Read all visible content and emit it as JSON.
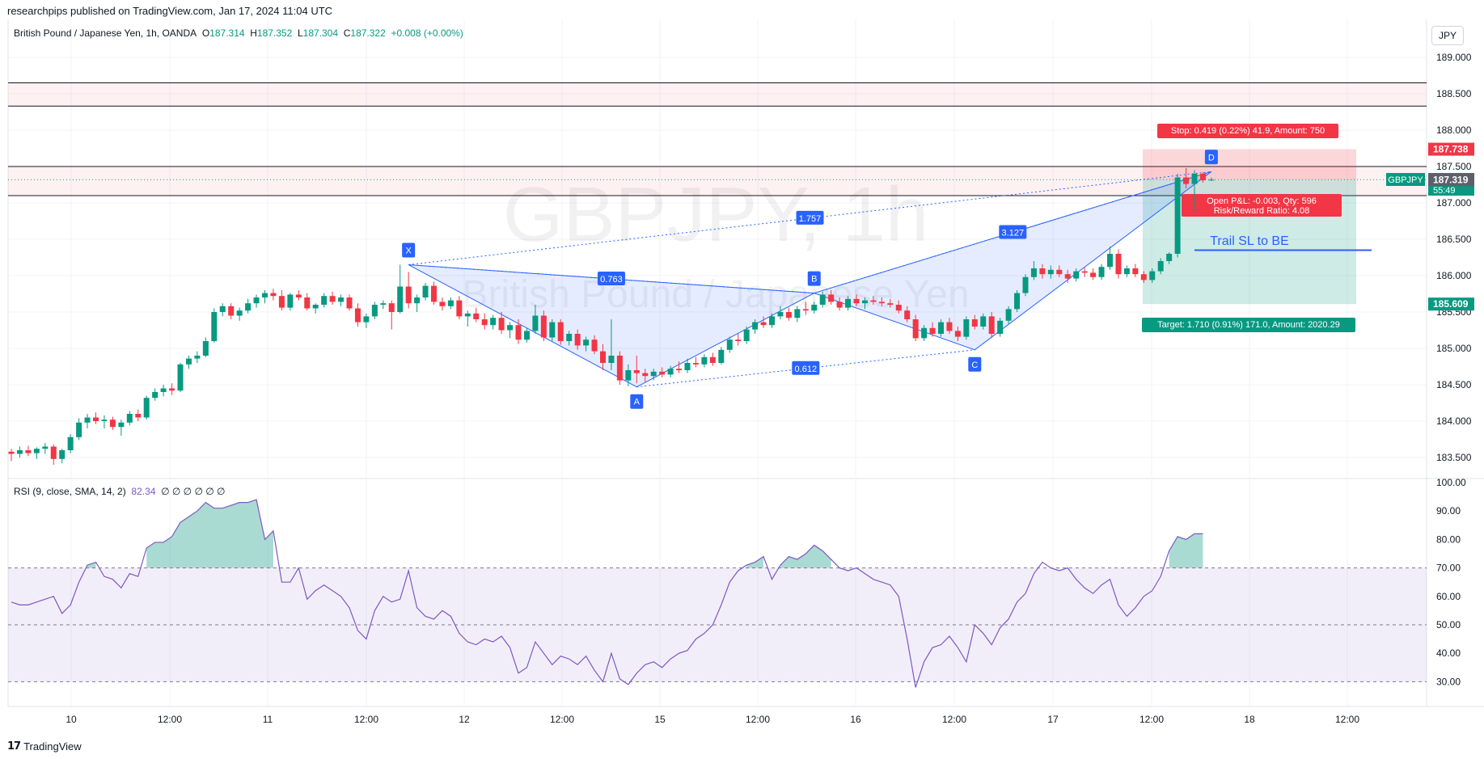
{
  "header": {
    "publish_line": "researchpips published on TradingView.com, Jan 17, 2024 11:04 UTC",
    "currency": "JPY"
  },
  "legend": {
    "title": "British Pound / Japanese Yen, 1h, OANDA",
    "o_label": "O",
    "o": "187.314",
    "h_label": "H",
    "h": "187.352",
    "l_label": "L",
    "l": "187.304",
    "c_label": "C",
    "c": "187.322",
    "change": "+0.008 (+0.00%)"
  },
  "rsi_legend": {
    "label": "RSI (9, close, SMA, 14, 2)",
    "value": "82.34",
    "extra": "∅ ∅ ∅ ∅ ∅ ∅"
  },
  "watermark": {
    "symbol": "GBPJPY, 1h",
    "name": "British Pound / Japanese Yen"
  },
  "footer": {
    "brand": "TradingView"
  },
  "colors": {
    "up": "#089981",
    "down": "#f23645",
    "pattern": "#2962ff",
    "rsi": "#7e57c2",
    "grid": "#f0f3fa",
    "axis_text": "#131722"
  },
  "chart_data": [
    {
      "type": "candlestick",
      "symbol": "GBPJPY",
      "timeframe": "1h",
      "x_ticks": [
        "10",
        "12:00",
        "11",
        "12:00",
        "12",
        "12:00",
        "15",
        "12:00",
        "16",
        "12:00",
        "17",
        "12:00",
        "18",
        "12:00"
      ],
      "y_ticks": [
        "189.000",
        "188.500",
        "188.000",
        "187.500",
        "187.000",
        "186.500",
        "186.000",
        "185.500",
        "185.000",
        "184.500",
        "184.000",
        "183.500"
      ],
      "ylim": [
        183.3,
        189.3
      ],
      "price_labels": [
        {
          "text": "187.738",
          "value": 187.738,
          "color": "#f23645"
        },
        {
          "text": "187.322",
          "value": 187.322,
          "color": "#089981",
          "tag": "GBPJPY",
          "countdown": "55:49"
        },
        {
          "text": "187.319",
          "value": 187.319,
          "color": "#5d606b"
        },
        {
          "text": "185.609",
          "value": 185.609,
          "color": "#089981"
        }
      ],
      "zones": [
        {
          "from": 188.33,
          "to": 188.65,
          "color": "#f23645"
        },
        {
          "from": 187.1,
          "to": 187.5,
          "color": "#f23645"
        }
      ],
      "harmonic_pattern": {
        "points": [
          {
            "label": "X",
            "index": 47,
            "price": 186.15
          },
          {
            "label": "A",
            "index": 74,
            "price": 184.47
          },
          {
            "label": "B",
            "index": 95,
            "price": 185.76
          },
          {
            "label": "C",
            "index": 114,
            "price": 184.98
          },
          {
            "label": "D",
            "index": 142,
            "price": 187.43
          }
        ],
        "ratios": [
          {
            "text": "0.763"
          },
          {
            "text": "0.612"
          },
          {
            "text": "1.757"
          },
          {
            "text": "3.127"
          }
        ]
      },
      "position": {
        "entry": 187.319,
        "stop": 187.738,
        "target": 185.609,
        "stop_label": "Stop: 0.419 (0.22%) 41.9, Amount: 750",
        "pnl_label": "Open P&L: -0.003, Qty: 596",
        "rr_label": "Risk/Reward Ratio: 4.08",
        "target_label": "Target: 1.710 (0.91%) 171.0, Amount: 2020.29"
      },
      "annotation": {
        "text": "Trail SL to BE",
        "price": 186.35
      },
      "candles": [
        [
          183.58,
          183.62,
          183.45,
          183.55
        ],
        [
          183.55,
          183.65,
          183.5,
          183.6
        ],
        [
          183.6,
          183.66,
          183.52,
          183.56
        ],
        [
          183.56,
          183.64,
          183.48,
          183.62
        ],
        [
          183.62,
          183.7,
          183.55,
          183.65
        ],
        [
          183.65,
          183.68,
          183.4,
          183.48
        ],
        [
          183.48,
          183.62,
          183.42,
          183.6
        ],
        [
          183.6,
          183.82,
          183.56,
          183.78
        ],
        [
          183.78,
          184.04,
          183.74,
          183.98
        ],
        [
          183.98,
          184.1,
          183.9,
          184.05
        ],
        [
          184.05,
          184.12,
          183.96,
          184.0
        ],
        [
          184.0,
          184.08,
          183.9,
          184.02
        ],
        [
          184.02,
          184.06,
          183.88,
          183.92
        ],
        [
          183.92,
          184.02,
          183.8,
          183.98
        ],
        [
          183.98,
          184.14,
          183.94,
          184.1
        ],
        [
          184.1,
          184.16,
          184.0,
          184.05
        ],
        [
          184.05,
          184.35,
          184.02,
          184.32
        ],
        [
          184.32,
          184.45,
          184.28,
          184.4
        ],
        [
          184.4,
          184.5,
          184.34,
          184.45
        ],
        [
          184.45,
          184.52,
          184.36,
          184.42
        ],
        [
          184.42,
          184.8,
          184.4,
          184.78
        ],
        [
          184.78,
          184.9,
          184.72,
          184.86
        ],
        [
          184.86,
          184.96,
          184.8,
          184.9
        ],
        [
          184.9,
          185.15,
          184.88,
          185.1
        ],
        [
          185.1,
          185.55,
          185.08,
          185.5
        ],
        [
          185.5,
          185.62,
          185.44,
          185.58
        ],
        [
          185.58,
          185.62,
          185.4,
          185.45
        ],
        [
          185.45,
          185.56,
          185.38,
          185.52
        ],
        [
          185.52,
          185.68,
          185.48,
          185.62
        ],
        [
          185.62,
          185.74,
          185.56,
          185.7
        ],
        [
          185.7,
          185.8,
          185.62,
          185.76
        ],
        [
          185.76,
          185.82,
          185.66,
          185.72
        ],
        [
          185.72,
          185.8,
          185.52,
          185.56
        ],
        [
          185.56,
          185.76,
          185.52,
          185.74
        ],
        [
          185.74,
          185.8,
          185.66,
          185.7
        ],
        [
          185.7,
          185.76,
          185.52,
          185.55
        ],
        [
          185.55,
          185.62,
          185.48,
          185.6
        ],
        [
          185.6,
          185.76,
          185.56,
          185.72
        ],
        [
          185.72,
          185.78,
          185.6,
          185.64
        ],
        [
          185.64,
          185.74,
          185.58,
          185.7
        ],
        [
          185.7,
          185.74,
          185.52,
          185.55
        ],
        [
          185.55,
          185.62,
          185.3,
          185.36
        ],
        [
          185.36,
          185.48,
          185.28,
          185.44
        ],
        [
          185.44,
          185.64,
          185.4,
          185.6
        ],
        [
          185.6,
          185.66,
          185.54,
          185.62
        ],
        [
          185.62,
          185.66,
          185.26,
          185.5
        ],
        [
          185.5,
          186.15,
          185.48,
          185.85
        ],
        [
          185.85,
          186.05,
          185.55,
          185.62
        ],
        [
          185.62,
          185.74,
          185.5,
          185.7
        ],
        [
          185.7,
          185.9,
          185.66,
          185.86
        ],
        [
          185.86,
          185.92,
          185.6,
          185.64
        ],
        [
          185.64,
          185.7,
          185.52,
          185.58
        ],
        [
          185.58,
          185.7,
          185.54,
          185.66
        ],
        [
          185.66,
          185.72,
          185.4,
          185.44
        ],
        [
          185.44,
          185.52,
          185.3,
          185.48
        ],
        [
          185.48,
          185.56,
          185.36,
          185.4
        ],
        [
          185.4,
          185.48,
          185.26,
          185.32
        ],
        [
          185.32,
          185.46,
          185.26,
          185.42
        ],
        [
          185.42,
          185.5,
          185.2,
          185.25
        ],
        [
          185.25,
          185.36,
          185.14,
          185.32
        ],
        [
          185.32,
          185.4,
          185.06,
          185.12
        ],
        [
          185.12,
          185.28,
          185.08,
          185.24
        ],
        [
          185.24,
          185.6,
          185.2,
          185.45
        ],
        [
          185.45,
          185.52,
          185.1,
          185.15
        ],
        [
          185.15,
          185.4,
          185.1,
          185.36
        ],
        [
          185.36,
          185.4,
          185.05,
          185.1
        ],
        [
          185.1,
          185.24,
          185.04,
          185.2
        ],
        [
          185.2,
          185.26,
          184.98,
          185.04
        ],
        [
          185.04,
          185.16,
          184.96,
          185.12
        ],
        [
          185.12,
          185.18,
          184.92,
          184.96
        ],
        [
          184.96,
          185.06,
          184.7,
          184.8
        ],
        [
          184.8,
          185.4,
          184.7,
          184.9
        ],
        [
          184.9,
          184.96,
          184.5,
          184.56
        ],
        [
          184.56,
          184.78,
          184.48,
          184.7
        ],
        [
          184.7,
          184.9,
          184.52,
          184.66
        ],
        [
          184.66,
          184.72,
          184.54,
          184.62
        ],
        [
          184.62,
          184.72,
          184.56,
          184.68
        ],
        [
          184.68,
          184.74,
          184.6,
          184.64
        ],
        [
          184.64,
          184.76,
          184.6,
          184.72
        ],
        [
          184.72,
          184.82,
          184.66,
          184.7
        ],
        [
          184.7,
          184.86,
          184.66,
          184.8
        ],
        [
          184.8,
          184.88,
          184.74,
          184.78
        ],
        [
          184.78,
          184.92,
          184.74,
          184.88
        ],
        [
          184.88,
          184.94,
          184.76,
          184.8
        ],
        [
          184.8,
          185.02,
          184.78,
          184.98
        ],
        [
          184.98,
          185.16,
          184.94,
          185.12
        ],
        [
          185.12,
          185.2,
          185.04,
          185.1
        ],
        [
          185.1,
          185.3,
          185.06,
          185.26
        ],
        [
          185.26,
          185.4,
          185.2,
          185.36
        ],
        [
          185.36,
          185.44,
          185.28,
          185.32
        ],
        [
          185.32,
          185.48,
          185.28,
          185.44
        ],
        [
          185.44,
          185.58,
          185.4,
          185.5
        ],
        [
          185.5,
          185.56,
          185.38,
          185.42
        ],
        [
          185.42,
          185.58,
          185.36,
          185.54
        ],
        [
          185.54,
          185.64,
          185.46,
          185.52
        ],
        [
          185.52,
          185.64,
          185.48,
          185.6
        ],
        [
          185.6,
          185.78,
          185.56,
          185.74
        ],
        [
          185.74,
          185.8,
          185.6,
          185.64
        ],
        [
          185.64,
          185.7,
          185.52,
          185.56
        ],
        [
          185.56,
          185.72,
          185.52,
          185.68
        ],
        [
          185.68,
          185.74,
          185.58,
          185.62
        ],
        [
          185.62,
          185.7,
          185.54,
          185.66
        ],
        [
          185.66,
          185.72,
          185.6,
          185.64
        ],
        [
          185.64,
          185.7,
          185.58,
          185.62
        ],
        [
          185.62,
          185.68,
          185.56,
          185.6
        ],
        [
          185.6,
          185.66,
          185.48,
          185.52
        ],
        [
          185.52,
          185.58,
          185.36,
          185.4
        ],
        [
          185.4,
          185.46,
          185.1,
          185.14
        ],
        [
          185.14,
          185.32,
          185.1,
          185.28
        ],
        [
          185.28,
          185.36,
          185.16,
          185.2
        ],
        [
          185.2,
          185.4,
          185.16,
          185.36
        ],
        [
          185.36,
          185.42,
          185.2,
          185.24
        ],
        [
          185.24,
          185.3,
          185.1,
          185.16
        ],
        [
          185.16,
          185.44,
          185.12,
          185.4
        ],
        [
          185.4,
          185.46,
          185.26,
          185.3
        ],
        [
          185.3,
          185.48,
          185.26,
          185.44
        ],
        [
          185.44,
          185.5,
          185.14,
          185.2
        ],
        [
          185.2,
          185.42,
          185.16,
          185.38
        ],
        [
          185.38,
          185.58,
          185.34,
          185.54
        ],
        [
          185.54,
          185.8,
          185.5,
          185.76
        ],
        [
          185.76,
          186.02,
          185.72,
          185.98
        ],
        [
          185.98,
          186.2,
          185.94,
          186.1
        ],
        [
          186.1,
          186.16,
          185.96,
          186.02
        ],
        [
          186.02,
          186.14,
          185.96,
          186.08
        ],
        [
          186.08,
          186.14,
          185.98,
          186.02
        ],
        [
          186.02,
          186.08,
          185.9,
          185.96
        ],
        [
          185.96,
          186.1,
          185.92,
          186.06
        ],
        [
          186.06,
          186.12,
          185.98,
          186.04
        ],
        [
          186.04,
          186.1,
          185.94,
          185.98
        ],
        [
          185.98,
          186.16,
          185.94,
          186.12
        ],
        [
          186.12,
          186.4,
          186.08,
          186.3
        ],
        [
          186.3,
          186.36,
          185.96,
          186.02
        ],
        [
          186.02,
          186.14,
          185.98,
          186.1
        ],
        [
          186.1,
          186.16,
          185.98,
          186.02
        ],
        [
          186.02,
          186.06,
          185.9,
          185.94
        ],
        [
          185.94,
          186.1,
          185.9,
          186.06
        ],
        [
          186.06,
          186.24,
          186.02,
          186.2
        ],
        [
          186.2,
          186.32,
          186.16,
          186.3
        ],
        [
          186.3,
          187.4,
          186.25,
          187.35
        ],
        [
          187.35,
          187.48,
          187.2,
          187.26
        ],
        [
          187.26,
          187.45,
          186.88,
          187.4
        ],
        [
          187.4,
          187.42,
          187.28,
          187.31
        ],
        [
          187.31,
          187.35,
          187.3,
          187.32
        ]
      ]
    },
    {
      "type": "line",
      "name": "RSI (9, close, SMA, 14, 2)",
      "y_ticks": [
        "100.00",
        "90.00",
        "80.00",
        "70.00",
        "60.00",
        "50.00",
        "40.00",
        "30.00"
      ],
      "ylim": [
        24,
        100
      ],
      "band": {
        "upper": 70,
        "middle": 50,
        "lower": 30
      },
      "values": [
        58,
        57,
        57,
        58,
        59,
        60,
        54,
        57,
        65,
        71,
        72,
        67,
        66,
        63,
        68,
        67,
        77,
        79,
        79,
        81,
        86,
        88,
        90,
        93,
        91,
        91,
        92,
        93,
        93,
        94,
        80,
        83,
        65,
        65,
        70,
        59,
        62,
        64,
        62,
        60,
        56,
        48,
        45,
        55,
        60,
        58,
        59,
        69,
        56,
        53,
        52,
        55,
        53,
        47,
        44,
        43,
        45,
        44,
        46,
        42,
        33,
        35,
        44,
        40,
        36,
        39,
        38,
        36,
        39,
        34,
        30,
        40,
        31,
        29,
        33,
        36,
        37,
        35,
        38,
        40,
        41,
        45,
        47,
        50,
        57,
        65,
        69,
        71,
        72,
        74,
        66,
        71,
        74,
        73,
        75,
        78,
        76,
        73,
        70,
        69,
        70,
        68,
        66,
        65,
        64,
        60,
        45,
        28,
        37,
        42,
        43,
        46,
        42,
        37,
        50,
        47,
        43,
        49,
        52,
        58,
        61,
        68,
        72,
        70,
        69,
        70,
        66,
        63,
        61,
        64,
        66,
        57,
        53,
        56,
        60,
        62,
        67,
        76,
        81,
        80,
        82,
        82
      ]
    }
  ]
}
